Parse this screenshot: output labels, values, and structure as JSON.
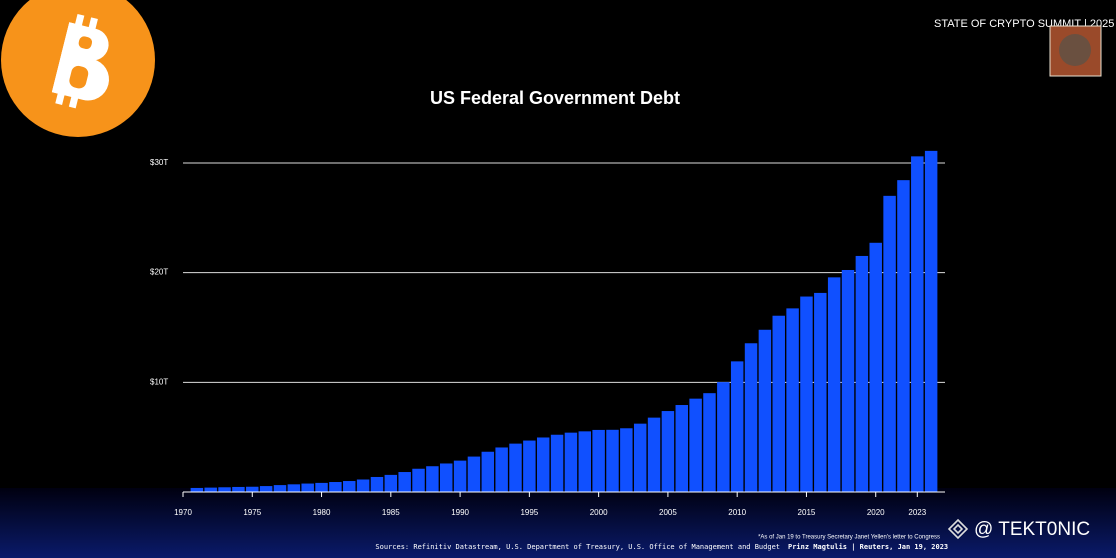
{
  "header": {
    "event": "STATE OF CRYPTO SUMMIT | 2025"
  },
  "chart_data": {
    "type": "bar",
    "title": "US Federal Government Debt",
    "x": [
      1971,
      1972,
      1973,
      1974,
      1975,
      1976,
      1977,
      1978,
      1979,
      1980,
      1981,
      1982,
      1983,
      1984,
      1985,
      1986,
      1987,
      1988,
      1989,
      1990,
      1991,
      1992,
      1993,
      1994,
      1995,
      1996,
      1997,
      1998,
      1999,
      2000,
      2001,
      2002,
      2003,
      2004,
      2005,
      2006,
      2007,
      2008,
      2009,
      2010,
      2011,
      2012,
      2013,
      2014,
      2015,
      2016,
      2017,
      2018,
      2019,
      2020,
      2021,
      2022,
      2023,
      2024
    ],
    "values": [
      0.37,
      0.4,
      0.43,
      0.46,
      0.48,
      0.54,
      0.63,
      0.7,
      0.77,
      0.83,
      0.91,
      1.0,
      1.14,
      1.37,
      1.56,
      1.82,
      2.12,
      2.35,
      2.6,
      2.86,
      3.23,
      3.67,
      4.06,
      4.41,
      4.69,
      4.97,
      5.22,
      5.41,
      5.53,
      5.66,
      5.67,
      5.81,
      6.23,
      6.78,
      7.38,
      7.93,
      8.51,
      9.01,
      10.02,
      11.91,
      13.56,
      14.79,
      16.07,
      16.74,
      17.82,
      18.15,
      19.57,
      20.24,
      21.52,
      22.72,
      27.0,
      28.43,
      30.6,
      31.1
    ],
    "color": "#1050ff",
    "xlim": [
      1970,
      2025
    ],
    "xticks": [
      1970,
      1975,
      1980,
      1985,
      1990,
      1995,
      2000,
      2005,
      2010,
      2015,
      2020,
      2023
    ],
    "ylim": [
      0,
      32
    ],
    "yticks": [
      {
        "value": 10,
        "label": "$10T"
      },
      {
        "value": 20,
        "label": "$20T"
      },
      {
        "value": 30,
        "label": "$30T"
      }
    ],
    "grid": true
  },
  "footnote": "*As of Jan 19 to Treasury Secretary Janet Yellen's letter to Congress",
  "sources": "Sources: Refinitiv Datastream, U.S. Department of Treasury, U.S. Office of Management and Budget",
  "credit": "Prinz Magtulis | Reuters, Jan 19, 2023",
  "watermark": "@ TEKT0NIC"
}
